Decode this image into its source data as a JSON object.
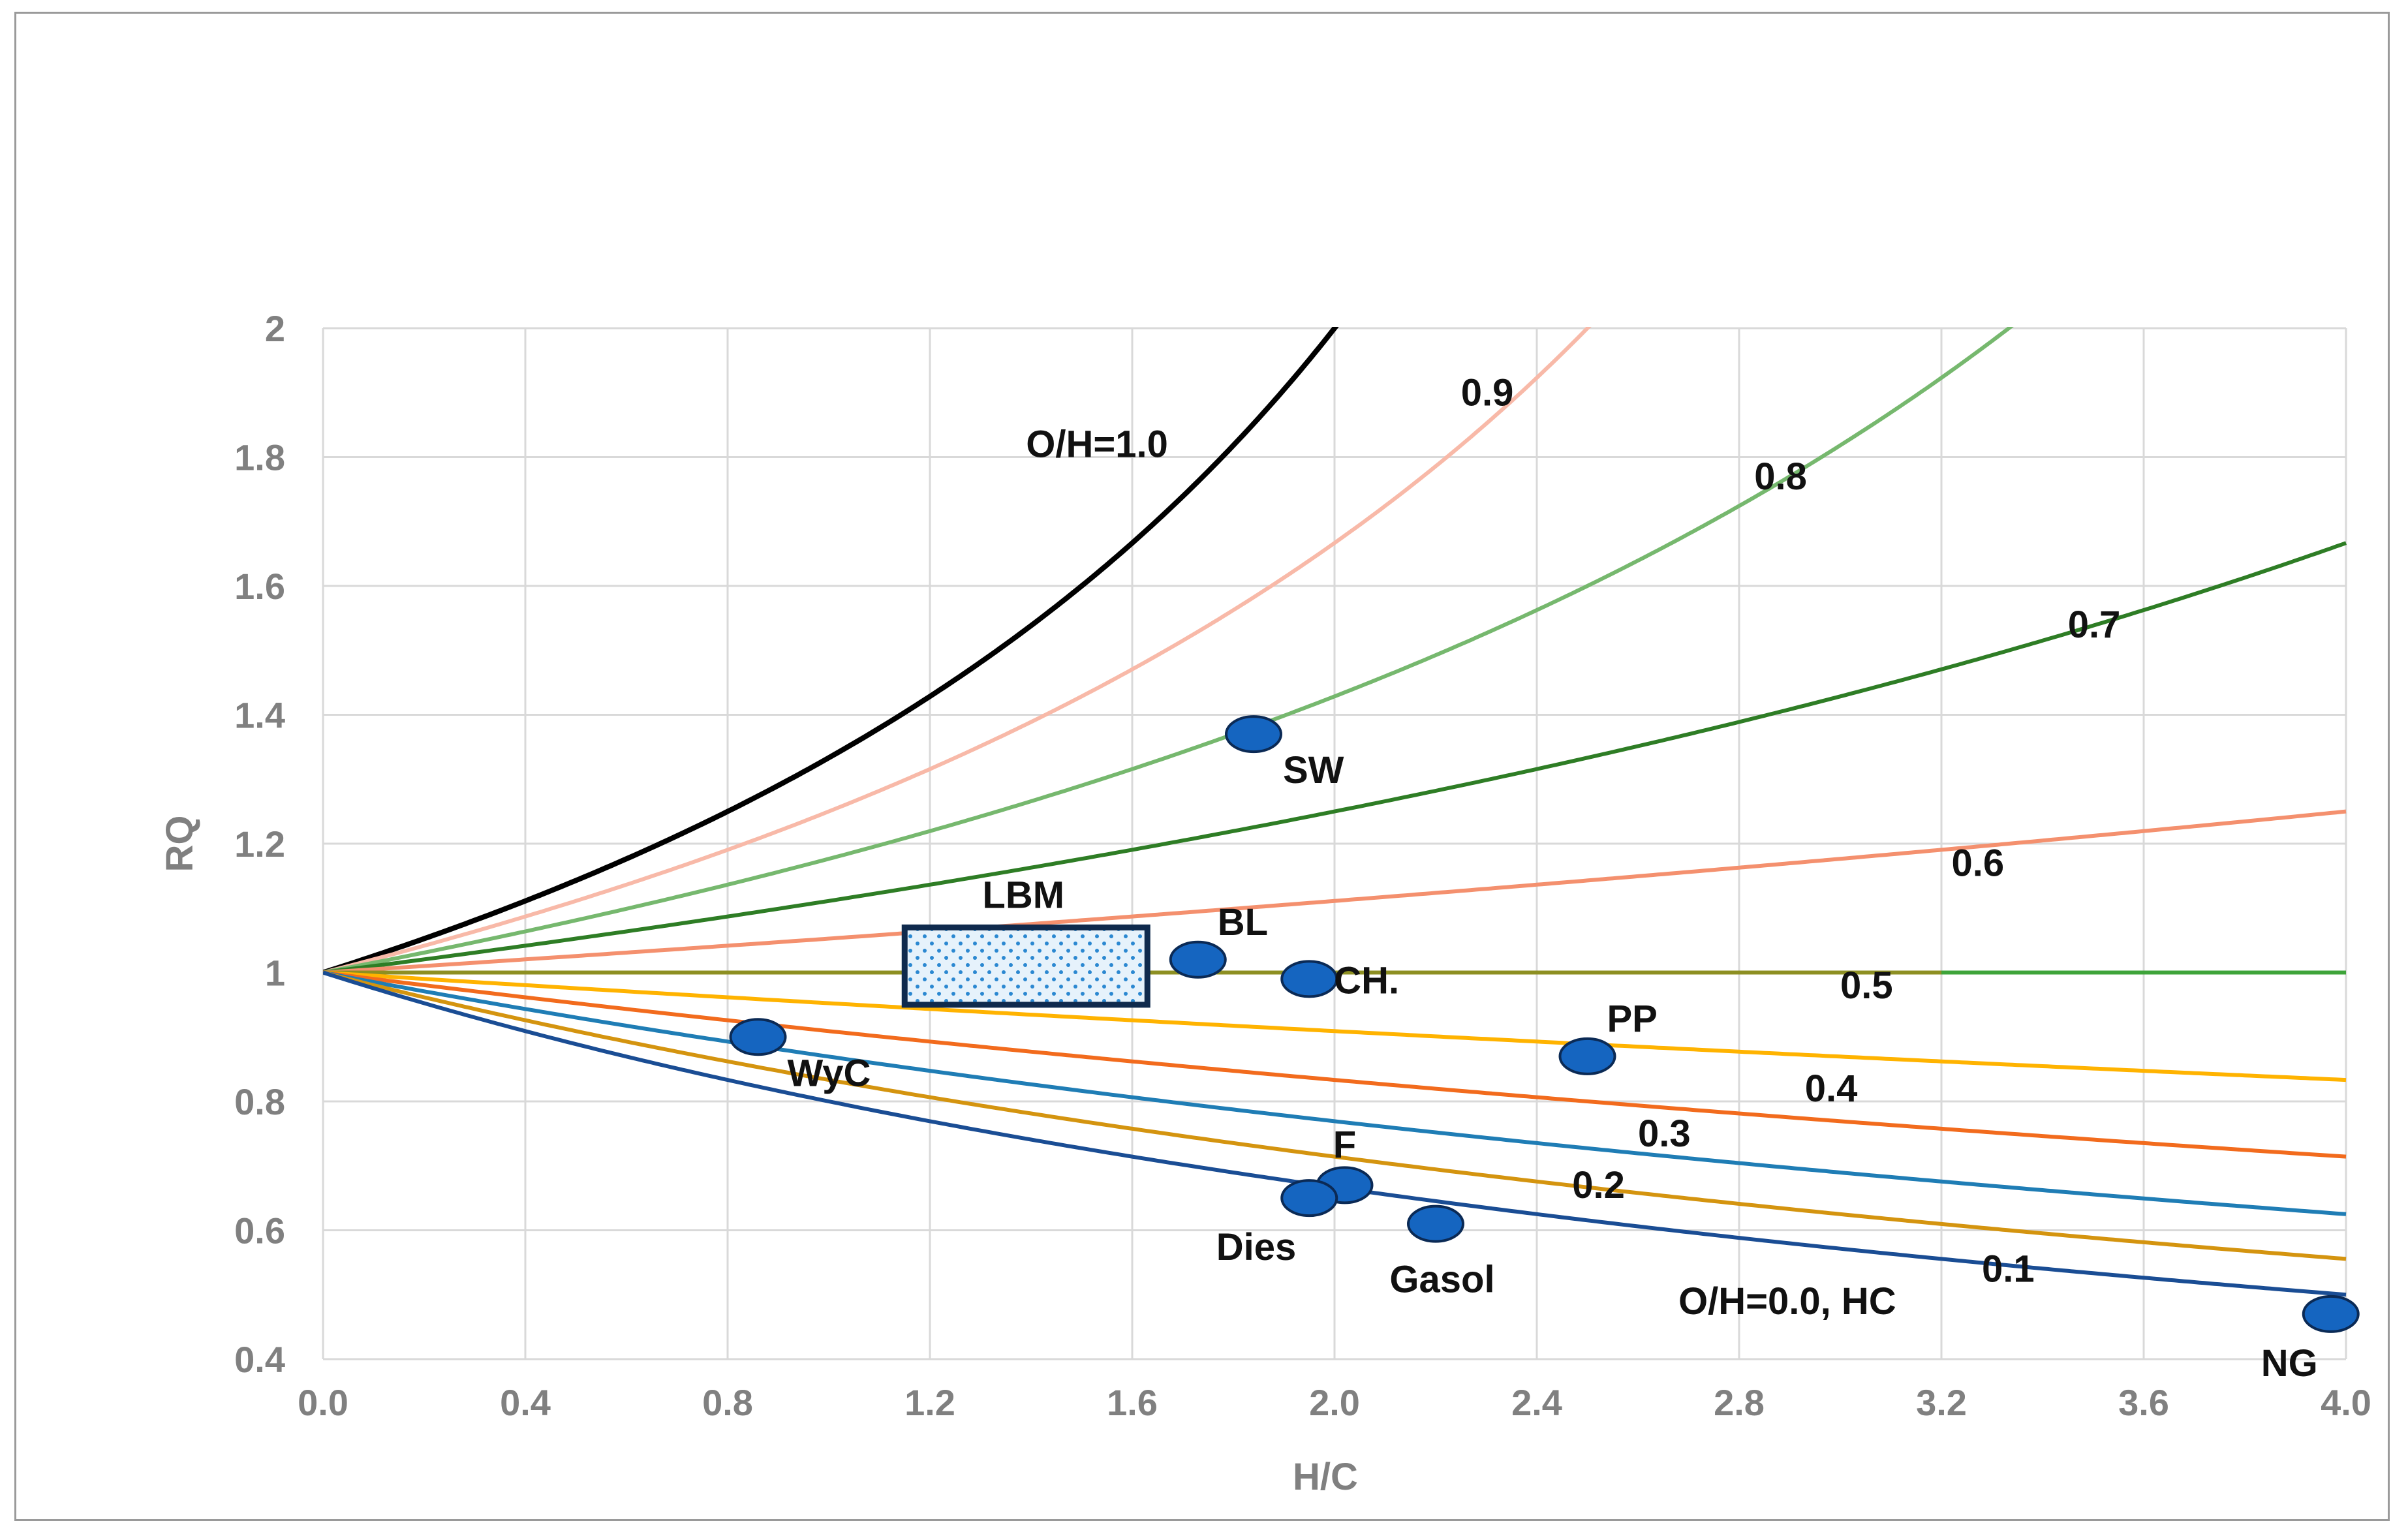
{
  "chart_data": {
    "type": "line",
    "title": "",
    "xlabel": "H/C",
    "ylabel": "RQ",
    "xlim": [
      0,
      4.0
    ],
    "ylim": [
      0.4,
      2
    ],
    "grid": true,
    "x_ticks": [
      {
        "value": 0.0,
        "label": "0.0"
      },
      {
        "value": 0.4,
        "label": "0.4"
      },
      {
        "value": 0.8,
        "label": "0.8"
      },
      {
        "value": 1.2,
        "label": "1.2"
      },
      {
        "value": 1.6,
        "label": "1.6"
      },
      {
        "value": 2.0,
        "label": "2.0"
      },
      {
        "value": 2.4,
        "label": "2.4"
      },
      {
        "value": 2.8,
        "label": "2.8"
      },
      {
        "value": 3.2,
        "label": "3.2"
      },
      {
        "value": 3.6,
        "label": "3.6"
      },
      {
        "value": 4.0,
        "label": "4.0"
      }
    ],
    "y_ticks": [
      {
        "value": 0.4,
        "label": "0.4"
      },
      {
        "value": 0.6,
        "label": "0.6"
      },
      {
        "value": 0.8,
        "label": "0.8"
      },
      {
        "value": 1.0,
        "label": "1"
      },
      {
        "value": 1.2,
        "label": "1.2"
      },
      {
        "value": 1.4,
        "label": "1.4"
      },
      {
        "value": 1.6,
        "label": "1.6"
      },
      {
        "value": 1.8,
        "label": "1.8"
      },
      {
        "value": 2.0,
        "label": "2"
      }
    ],
    "series": [
      {
        "name": "O/H=1.0",
        "oh": 1.0,
        "color": "#000000",
        "label": "O/H=1.0",
        "label_at": [
          1.39,
          1.8
        ]
      },
      {
        "name": "0.9",
        "oh": 0.9,
        "color": "#f8b9a8",
        "label": "0.9",
        "label_at": [
          2.25,
          1.88
        ]
      },
      {
        "name": "0.8",
        "oh": 0.8,
        "color": "#76b86e",
        "label": "0.8",
        "label_at": [
          2.83,
          1.75
        ]
      },
      {
        "name": "0.7",
        "oh": 0.7,
        "color": "#2e7d25",
        "label": "0.7",
        "label_at": [
          3.45,
          1.52
        ]
      },
      {
        "name": "0.6",
        "oh": 0.6,
        "color": "#f4906e",
        "label": "0.6",
        "label_at": [
          3.22,
          1.15
        ]
      },
      {
        "name": "0.5",
        "oh": 0.5,
        "color": "#3ea43a",
        "label": "0.5",
        "label_at": [
          3.0,
          0.96
        ]
      },
      {
        "name": "0.5 (overlay)",
        "oh": 0.5,
        "color": "#8d8f22",
        "x_max": 3.2,
        "label": ""
      },
      {
        "name": "0.4",
        "oh": 0.4,
        "color": "#ffb300",
        "label": "0.4",
        "label_at": [
          2.93,
          0.8
        ]
      },
      {
        "name": "0.3",
        "oh": 0.3,
        "color": "#f26b1d",
        "label": "0.3",
        "label_at": [
          2.6,
          0.73
        ]
      },
      {
        "name": "0.2",
        "oh": 0.2,
        "color": "#1f7db5",
        "label": "0.2",
        "label_at": [
          2.47,
          0.65
        ]
      },
      {
        "name": "0.1",
        "oh": 0.1,
        "color": "#d4940f",
        "label": "0.1",
        "label_at": [
          3.28,
          0.52
        ]
      },
      {
        "name": "O/H=0.0, HC",
        "oh": 0.0,
        "color": "#1a4d94",
        "label": "O/H=0.0, HC",
        "label_at": [
          2.68,
          0.47
        ]
      }
    ],
    "points": [
      {
        "name": "SW",
        "x": 1.84,
        "y": 1.37,
        "label": "SW",
        "label_pos": "below-right"
      },
      {
        "name": "BL",
        "x": 1.73,
        "y": 1.02,
        "label": "BL",
        "label_pos": "above-right"
      },
      {
        "name": "CH.",
        "x": 1.95,
        "y": 0.99,
        "label": "CH.",
        "label_pos": "right"
      },
      {
        "name": "WyC",
        "x": 0.86,
        "y": 0.9,
        "label": "WyC",
        "label_pos": "below-right"
      },
      {
        "name": "PP",
        "x": 2.5,
        "y": 0.87,
        "label": "PP",
        "label_pos": "above-right"
      },
      {
        "name": "F",
        "x": 2.02,
        "y": 0.67,
        "label": "F",
        "label_pos": "above"
      },
      {
        "name": "Dies",
        "x": 1.95,
        "y": 0.65,
        "label": "Dies",
        "label_pos": "below-left"
      },
      {
        "name": "Gasol",
        "x": 2.2,
        "y": 0.61,
        "label": "Gasol",
        "label_pos": "below"
      },
      {
        "name": "NG",
        "x": 3.97,
        "y": 0.47,
        "label": "NG",
        "label_pos": "below-left"
      }
    ],
    "regions": [
      {
        "name": "LBM",
        "label": "LBM",
        "x": [
          1.15,
          1.63
        ],
        "y": [
          0.95,
          1.07
        ],
        "fill": "#ddeefa",
        "stroke": "#0f2a4d"
      }
    ],
    "marker_color": "#1565c0",
    "marker_stroke": "#0b2a55"
  }
}
